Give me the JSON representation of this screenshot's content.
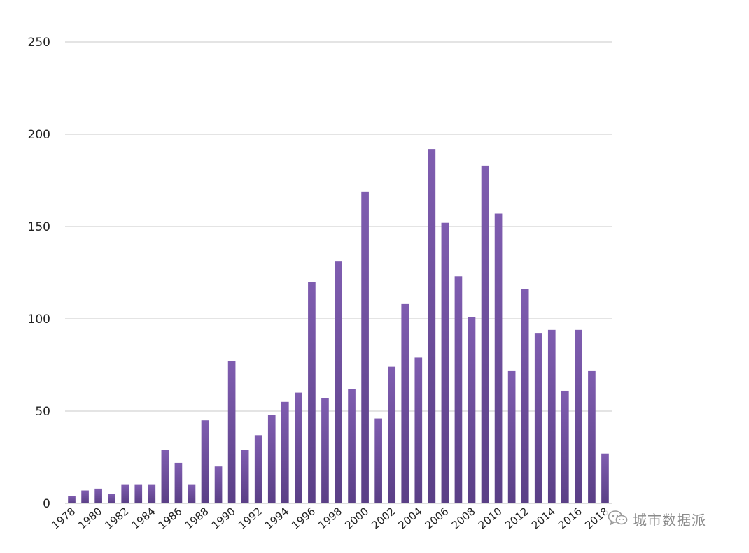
{
  "chart_data": {
    "type": "bar",
    "title": "",
    "xlabel": "",
    "ylabel": "",
    "ylim": [
      0,
      250
    ],
    "yticks": [
      0,
      50,
      100,
      150,
      200,
      250
    ],
    "grid": true,
    "legend": "none",
    "bar_color": "#7b5aa6",
    "bar_color_dark": "#5a3f86",
    "categories": [
      "1978",
      "1979",
      "1980",
      "1981",
      "1982",
      "1983",
      "1984",
      "1985",
      "1986",
      "1987",
      "1988",
      "1989",
      "1990",
      "1991",
      "1992",
      "1993",
      "1994",
      "1995",
      "1996",
      "1997",
      "1998",
      "1999",
      "2000",
      "2001",
      "2002",
      "2003",
      "2004",
      "2005",
      "2006",
      "2007",
      "2008",
      "2009",
      "2010",
      "2011",
      "2012",
      "2013",
      "2014",
      "2015",
      "2016",
      "2017",
      "2018"
    ],
    "x_tick_labels": [
      "1978",
      "1980",
      "1982",
      "1984",
      "1986",
      "1988",
      "1990",
      "1992",
      "1994",
      "1996",
      "1998",
      "2000",
      "2002",
      "2004",
      "2006",
      "2008",
      "2010",
      "2012",
      "2014",
      "2016",
      "2018"
    ],
    "values": [
      4,
      7,
      8,
      5,
      10,
      10,
      10,
      29,
      22,
      10,
      45,
      20,
      77,
      29,
      37,
      48,
      55,
      60,
      120,
      57,
      131,
      62,
      169,
      46,
      74,
      108,
      79,
      192,
      152,
      123,
      101,
      183,
      157,
      72,
      116,
      92,
      94,
      61,
      94,
      72,
      27
    ]
  },
  "watermark": {
    "icon": "wechat-icon",
    "text": "城市数据派"
  }
}
